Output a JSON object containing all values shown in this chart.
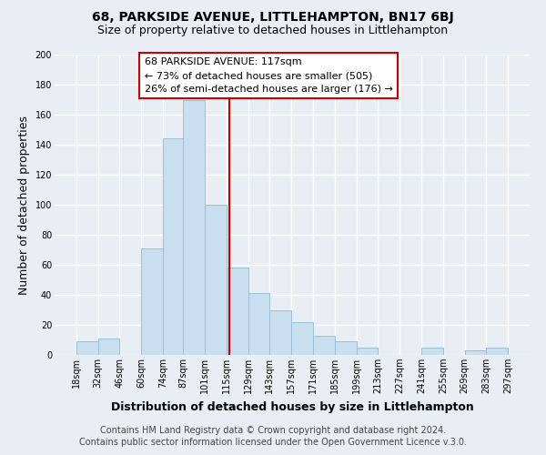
{
  "title": "68, PARKSIDE AVENUE, LITTLEHAMPTON, BN17 6BJ",
  "subtitle": "Size of property relative to detached houses in Littlehampton",
  "xlabel": "Distribution of detached houses by size in Littlehampton",
  "ylabel": "Number of detached properties",
  "bar_left_edges": [
    18,
    32,
    46,
    60,
    74,
    87,
    101,
    115,
    129,
    143,
    157,
    171,
    185,
    199,
    213,
    227,
    241,
    255,
    269,
    283
  ],
  "bar_heights": [
    9,
    11,
    0,
    71,
    144,
    170,
    100,
    58,
    41,
    30,
    22,
    13,
    9,
    5,
    0,
    0,
    5,
    0,
    3,
    5
  ],
  "bar_widths": [
    14,
    14,
    14,
    14,
    13,
    14,
    14,
    14,
    14,
    14,
    14,
    14,
    14,
    14,
    14,
    14,
    14,
    14,
    14,
    14
  ],
  "bar_color": "#c8dff0",
  "bar_edgecolor": "#a0bdd4",
  "xtick_labels": [
    "18sqm",
    "32sqm",
    "46sqm",
    "60sqm",
    "74sqm",
    "87sqm",
    "101sqm",
    "115sqm",
    "129sqm",
    "143sqm",
    "157sqm",
    "171sqm",
    "185sqm",
    "199sqm",
    "213sqm",
    "227sqm",
    "241sqm",
    "255sqm",
    "269sqm",
    "283sqm",
    "297sqm"
  ],
  "xtick_positions": [
    18,
    32,
    46,
    60,
    74,
    87,
    101,
    115,
    129,
    143,
    157,
    171,
    185,
    199,
    213,
    227,
    241,
    255,
    269,
    283,
    297
  ],
  "ytick_labels": [
    "0",
    "20",
    "40",
    "60",
    "80",
    "100",
    "120",
    "140",
    "160",
    "180",
    "200"
  ],
  "ytick_positions": [
    0,
    20,
    40,
    60,
    80,
    100,
    120,
    140,
    160,
    180,
    200
  ],
  "ylim": [
    0,
    200
  ],
  "xlim": [
    4,
    311
  ],
  "vline_x": 117,
  "vline_color": "#cc0000",
  "annotation_line1": "68 PARKSIDE AVENUE: 117sqm",
  "annotation_line2": "← 73% of detached houses are smaller (505)",
  "annotation_line3": "26% of semi-detached houses are larger (176) →",
  "footer_line1": "Contains HM Land Registry data © Crown copyright and database right 2024.",
  "footer_line2": "Contains public sector information licensed under the Open Government Licence v.3.0.",
  "background_color": "#e8eef4",
  "plot_bg_color": "#e8eef4",
  "grid_color": "#ffffff",
  "title_fontsize": 10,
  "subtitle_fontsize": 9,
  "axis_label_fontsize": 9,
  "tick_fontsize": 7,
  "footer_fontsize": 7,
  "ann_fontsize": 8
}
